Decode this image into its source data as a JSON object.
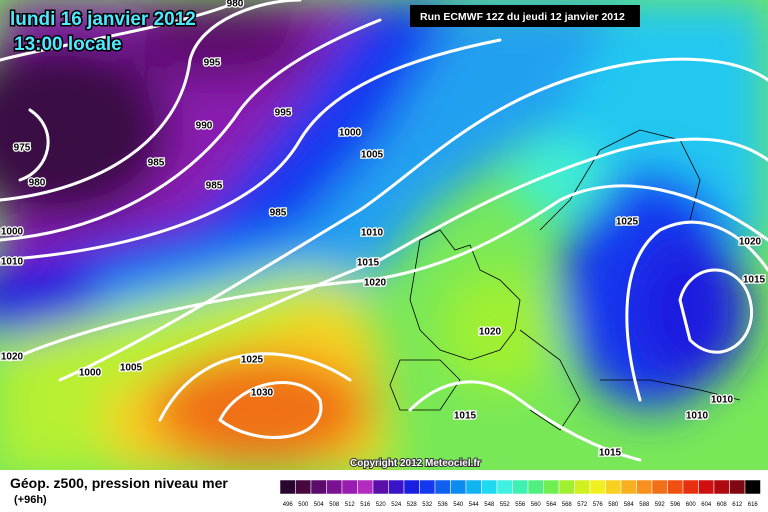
{
  "header": {
    "date": "lundi 16 janvier 2012",
    "time": "13:00 locale",
    "run": "Run ECMWF 12Z du jeudi 12 janvier 2012"
  },
  "isobar_labels": [
    "980",
    "995",
    "995",
    "990",
    "1000",
    "1005",
    "975",
    "985",
    "980",
    "985",
    "985",
    "1000",
    "1010",
    "1010",
    "1015",
    "1020",
    "1025",
    "1020",
    "1015",
    "1020",
    "1020",
    "1000",
    "1005",
    "1025",
    "1030",
    "1015",
    "1010",
    "1010",
    "1015"
  ],
  "footer": {
    "copyright": "Copyright 2012 Meteociel.fr"
  },
  "legend": {
    "title": "Géop. z500, pression niveau mer",
    "lead": "(+96h)",
    "scale": [
      {
        "label": "496",
        "color": "#2a0530"
      },
      {
        "label": "500",
        "color": "#46083f"
      },
      {
        "label": "504",
        "color": "#5c0a6b"
      },
      {
        "label": "508",
        "color": "#7a1293"
      },
      {
        "label": "512",
        "color": "#9a1cb0"
      },
      {
        "label": "516",
        "color": "#b22cc0"
      },
      {
        "label": "520",
        "color": "#5a10a8"
      },
      {
        "label": "524",
        "color": "#3a12c8"
      },
      {
        "label": "528",
        "color": "#1a1ee0"
      },
      {
        "label": "532",
        "color": "#1438f0"
      },
      {
        "label": "536",
        "color": "#1060f0"
      },
      {
        "label": "540",
        "color": "#0c8cf0"
      },
      {
        "label": "544",
        "color": "#10b4f0"
      },
      {
        "label": "548",
        "color": "#20d8f0"
      },
      {
        "label": "552",
        "color": "#40f0e0"
      },
      {
        "label": "556",
        "color": "#40f0b0"
      },
      {
        "label": "560",
        "color": "#50f080"
      },
      {
        "label": "564",
        "color": "#70f050"
      },
      {
        "label": "568",
        "color": "#a0f030"
      },
      {
        "label": "572",
        "color": "#d0f020"
      },
      {
        "label": "576",
        "color": "#f0f020"
      },
      {
        "label": "580",
        "color": "#f8d020"
      },
      {
        "label": "584",
        "color": "#f8b020"
      },
      {
        "label": "588",
        "color": "#f89020"
      },
      {
        "label": "592",
        "color": "#f07018"
      },
      {
        "label": "596",
        "color": "#f05010"
      },
      {
        "label": "600",
        "color": "#e83010"
      },
      {
        "label": "604",
        "color": "#d01010"
      },
      {
        "label": "608",
        "color": "#b00810"
      },
      {
        "label": "612",
        "color": "#800810"
      },
      {
        "label": "616",
        "color": "#000000"
      }
    ]
  }
}
